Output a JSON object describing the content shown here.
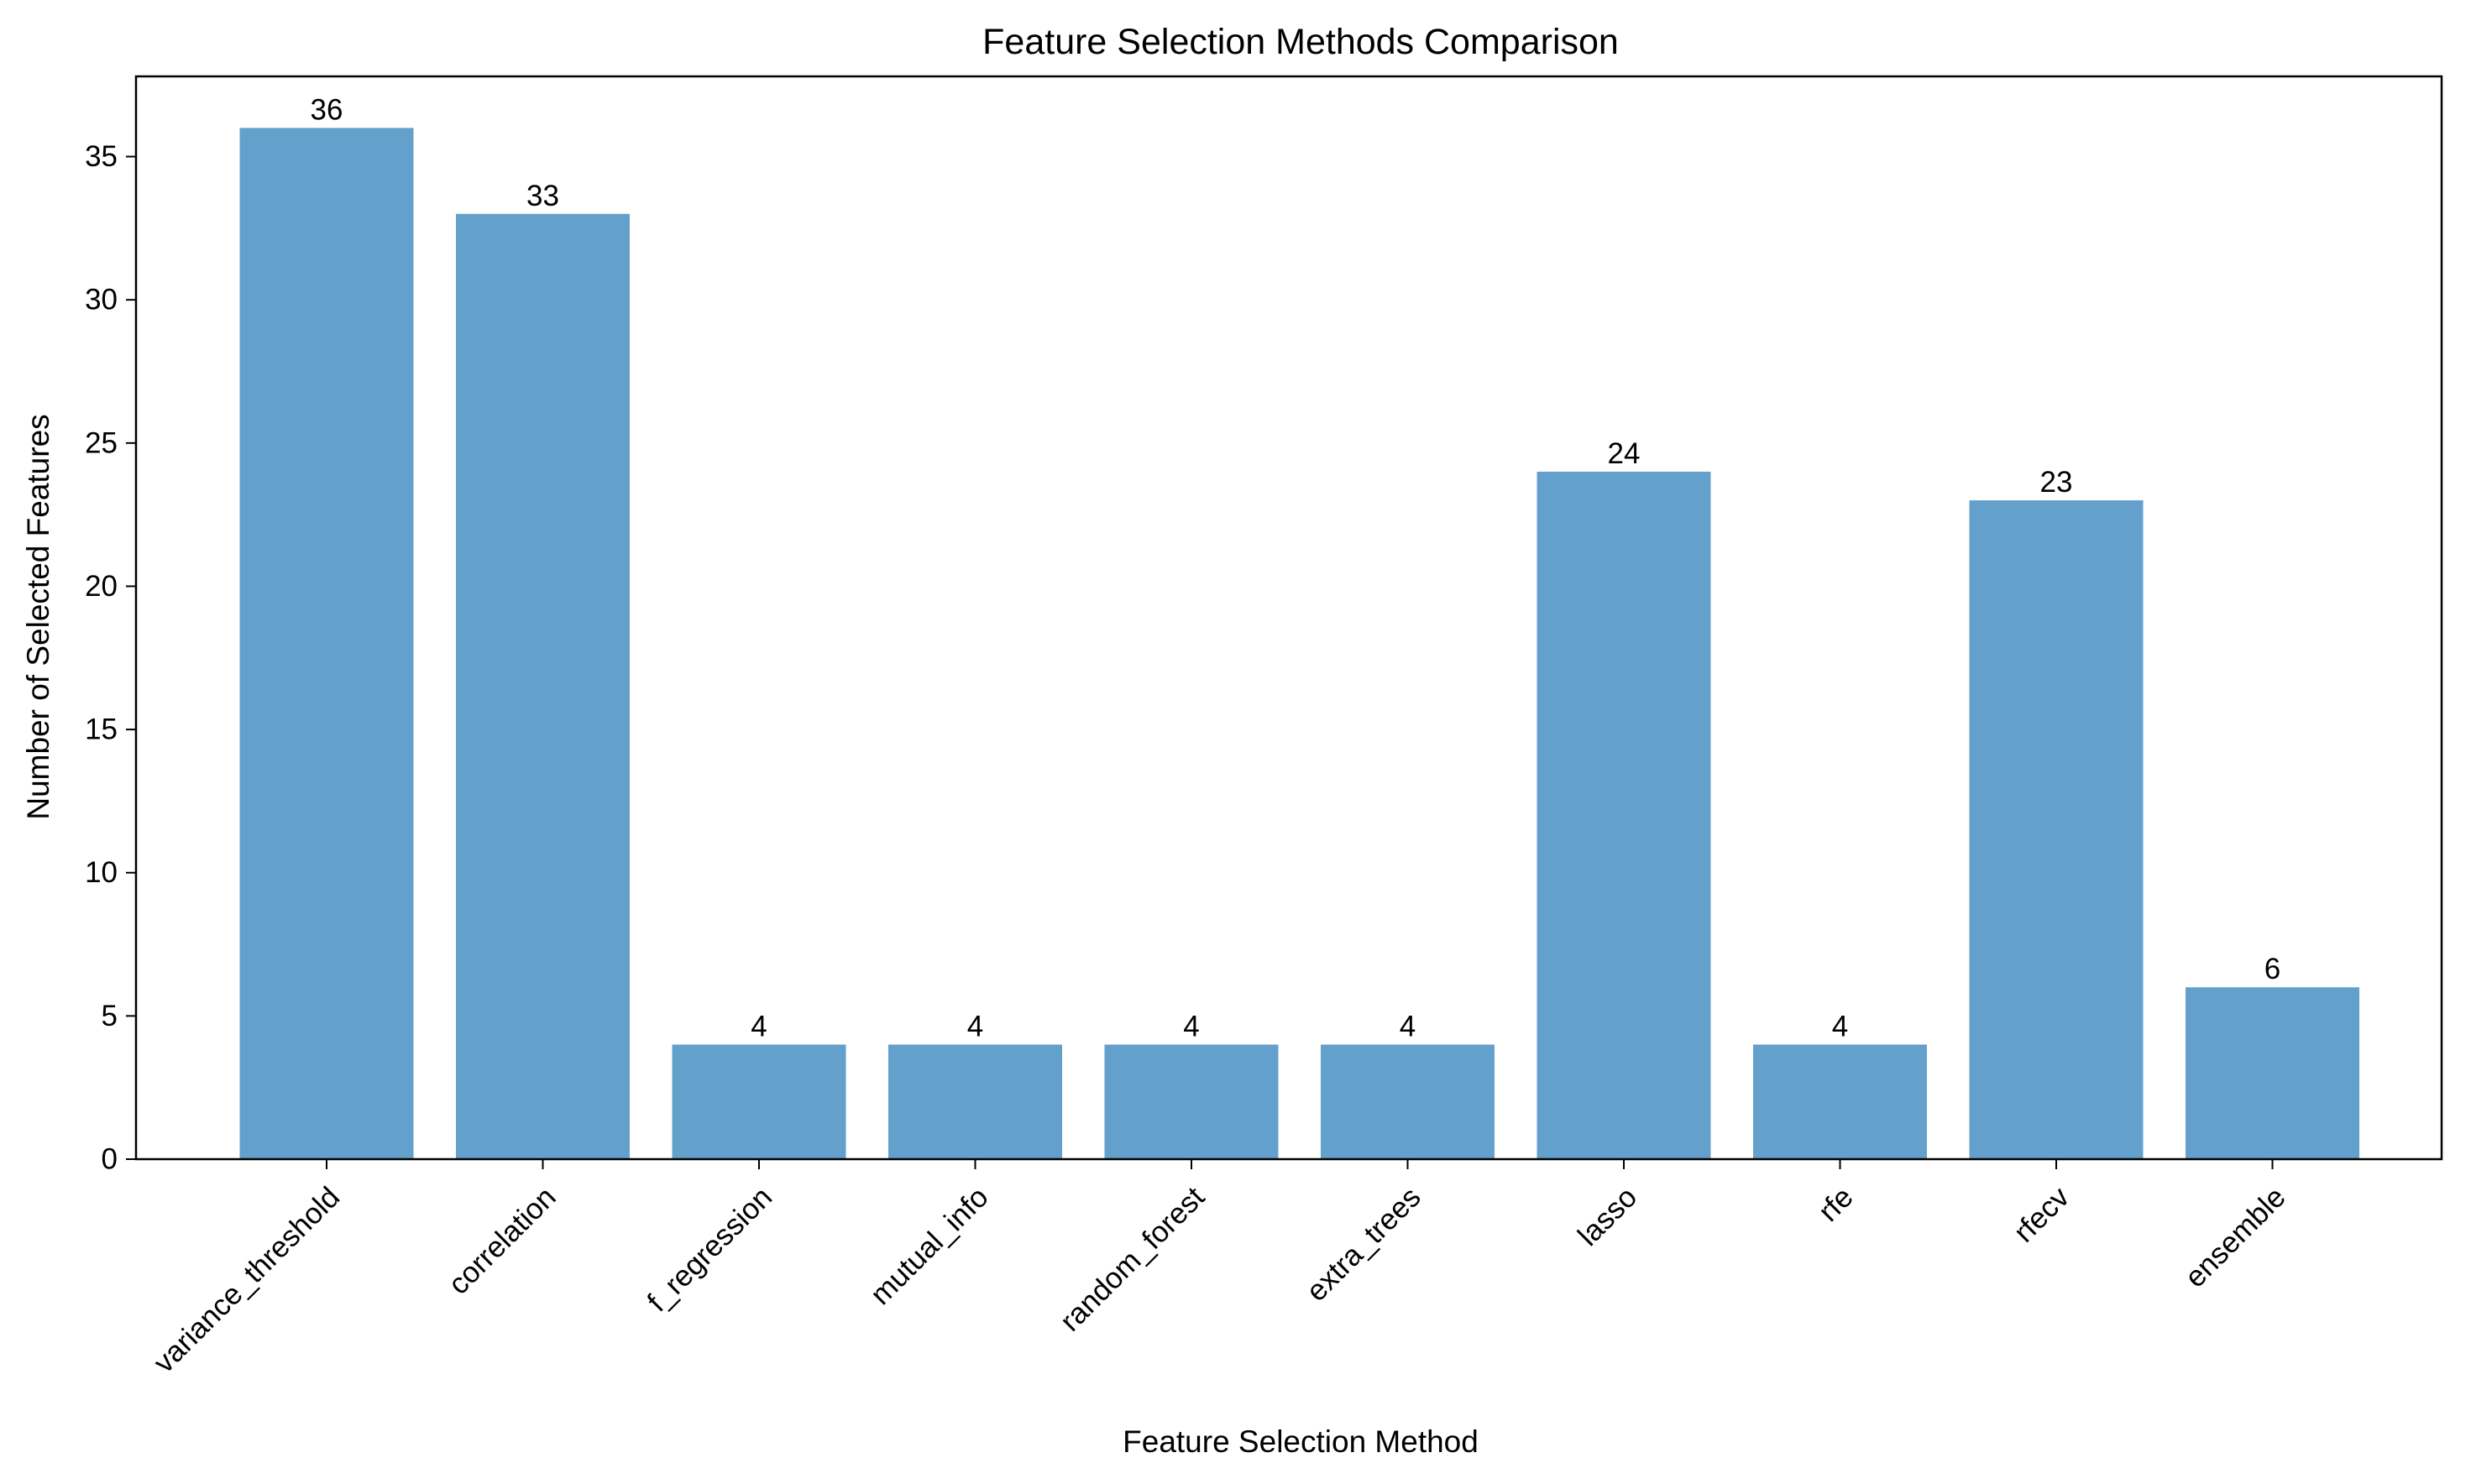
{
  "chart_data": {
    "type": "bar",
    "title": "Feature Selection Methods Comparison",
    "xlabel": "Feature Selection Method",
    "ylabel": "Number of Selected Features",
    "categories": [
      "variance_threshold",
      "correlation",
      "f_regression",
      "mutual_info",
      "random_forest",
      "extra_trees",
      "lasso",
      "rfe",
      "rfecv",
      "ensemble"
    ],
    "values": [
      36,
      33,
      4,
      4,
      4,
      4,
      24,
      4,
      23,
      6
    ],
    "data_labels": [
      "36",
      "33",
      "4",
      "4",
      "4",
      "4",
      "24",
      "4",
      "23",
      "6"
    ],
    "yticks": [
      0,
      5,
      10,
      15,
      20,
      25,
      30,
      35
    ],
    "ytick_labels": [
      "0",
      "5",
      "10",
      "15",
      "20",
      "25",
      "30",
      "35"
    ],
    "ylim": [
      0,
      37.8
    ],
    "grid": false,
    "legend": "none",
    "bar_color": "#63a0cb",
    "axis_color": "#000000"
  }
}
